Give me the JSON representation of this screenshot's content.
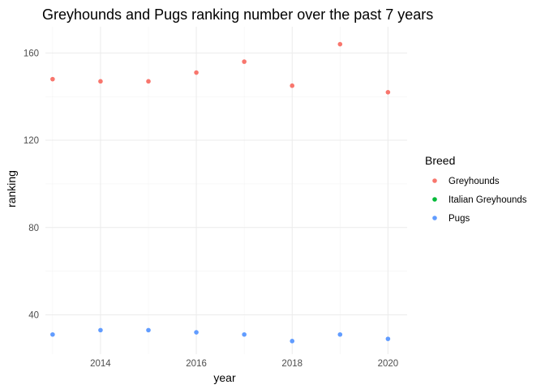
{
  "chart_data": {
    "type": "scatter",
    "title": "Greyhounds and Pugs ranking number over the past 7 years",
    "xlabel": "year",
    "ylabel": "ranking",
    "xlim": [
      2012.85,
      2020.4
    ],
    "ylim": [
      22,
      172
    ],
    "x_ticks": [
      2014,
      2016,
      2018,
      2020
    ],
    "y_ticks": [
      40,
      80,
      120,
      160
    ],
    "grid": true,
    "legend": {
      "title": "Breed",
      "position": "right"
    },
    "series": [
      {
        "name": "Greyhounds",
        "color": "#F8766D",
        "x": [
          2013,
          2014,
          2015,
          2016,
          2017,
          2018,
          2019,
          2020
        ],
        "y": [
          148,
          147,
          147,
          151,
          156,
          145,
          164,
          142
        ]
      },
      {
        "name": "Italian Greyhounds",
        "color": "#00BA38",
        "x": [],
        "y": []
      },
      {
        "name": "Pugs",
        "color": "#619CFF",
        "x": [
          2013,
          2014,
          2015,
          2016,
          2017,
          2018,
          2019,
          2020
        ],
        "y": [
          31,
          33,
          33,
          32,
          31,
          28,
          31,
          29
        ]
      }
    ]
  }
}
